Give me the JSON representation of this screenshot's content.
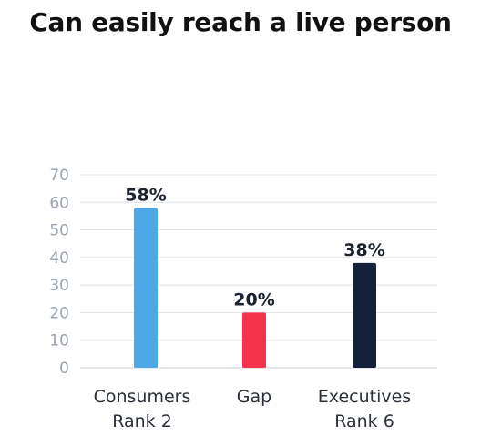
{
  "chart_data": {
    "type": "bar",
    "title": "Can easily reach a live person",
    "categories": [
      [
        "Consumers",
        "Rank 2"
      ],
      [
        "Gap"
      ],
      [
        "Executives",
        "Rank 6"
      ]
    ],
    "values": [
      58,
      20,
      38
    ],
    "value_labels": [
      "58%",
      "20%",
      "38%"
    ],
    "colors": [
      "#4ea8e8",
      "#f2334a",
      "#15203a"
    ],
    "ylim": [
      0,
      70
    ],
    "yticks": [
      0,
      10,
      20,
      30,
      40,
      50,
      60,
      70
    ],
    "grid": true,
    "legend": "none"
  }
}
